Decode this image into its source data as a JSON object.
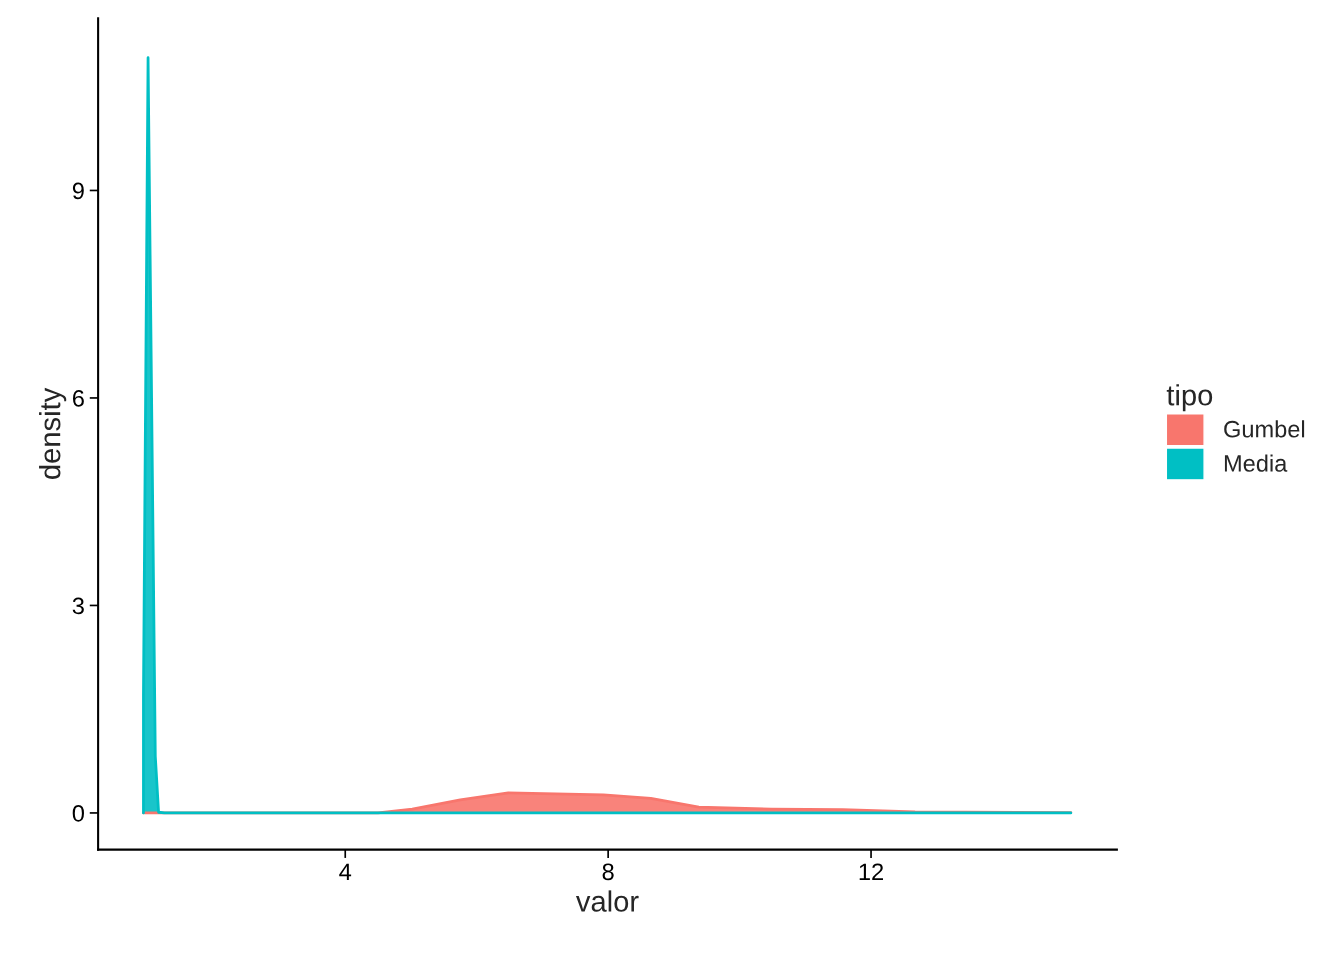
{
  "chart_data": {
    "type": "area",
    "xlabel": "valor",
    "ylabel": "density",
    "legend_title": "tipo",
    "legend": "right",
    "grid": false,
    "xlim": [
      0.24,
      15.74
    ],
    "ylim": [
      -0.53,
      11.49
    ],
    "xticks": [
      4,
      8,
      12
    ],
    "yticks": [
      0,
      3,
      6,
      9
    ],
    "series": [
      {
        "name": "Gumbel",
        "color": "#f8766d",
        "x": [
          0.93,
          4.5,
          5.02,
          5.75,
          6.48,
          7.93,
          8.65,
          9.38,
          10.48,
          11.57,
          12.67,
          15.04
        ],
        "values": [
          0,
          0,
          0.055,
          0.19,
          0.29,
          0.26,
          0.21,
          0.083,
          0.055,
          0.048,
          0.014,
          0.005
        ]
      },
      {
        "name": "Media",
        "color": "#00bfc4",
        "x": [
          0.93,
          0.93,
          1.0,
          1.11,
          1.16,
          1.25,
          4,
          8,
          12,
          15.04
        ],
        "values": [
          0,
          1.7,
          10.92,
          0.82,
          0.01,
          0,
          0,
          0,
          0,
          0
        ]
      }
    ]
  }
}
